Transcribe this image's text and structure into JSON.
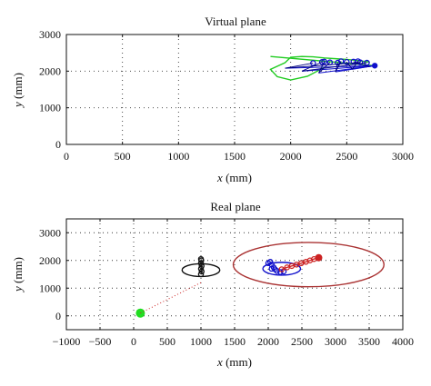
{
  "chart_data": [
    {
      "type": "scatter",
      "title": "Virtual plane",
      "xlabel_var": "x",
      "xlabel_unit": " (mm)",
      "ylabel_var": "y",
      "ylabel_unit": " (mm)",
      "xlim": [
        0,
        3000
      ],
      "ylim": [
        0,
        3000
      ],
      "xticks": [
        0,
        500,
        1000,
        1500,
        2000,
        2500,
        3000
      ],
      "yticks": [
        0,
        1000,
        2000,
        3000
      ],
      "grid": true,
      "colors": {
        "green": "#22cc22",
        "blue": "#1010cc",
        "navy": "#000080"
      },
      "series": [
        {
          "color": "green",
          "kind": "trajectory",
          "x": [
            2700,
            2600,
            2500,
            2400,
            2300,
            2200,
            2100,
            2000,
            1950,
            1820,
            1880,
            2000,
            2150,
            2300
          ],
          "y": [
            2250,
            2290,
            2320,
            2340,
            2360,
            2390,
            2400,
            2380,
            2230,
            2050,
            1850,
            1760,
            1860,
            2100
          ]
        },
        {
          "color": "green",
          "kind": "line",
          "x": [
            1820,
            2750
          ],
          "y": [
            2400,
            2150
          ]
        },
        {
          "color": "blue",
          "kind": "fan_center",
          "x": [
            2750
          ],
          "y": [
            2150
          ]
        },
        {
          "color": "blue",
          "kind": "fan_points",
          "x": [
            2200,
            2280,
            2350,
            2420,
            2500,
            2560,
            2620,
            2680,
            2300,
            2450,
            2600
          ],
          "y": [
            2220,
            2250,
            2240,
            2230,
            2250,
            2260,
            2240,
            2230,
            2260,
            2270,
            2270
          ]
        },
        {
          "color": "blue",
          "kind": "fan_targets",
          "x": [
            1950,
            2100,
            2250,
            2400,
            2550,
            2700
          ],
          "y": [
            2080,
            2000,
            1950,
            1980,
            2050,
            2120
          ]
        }
      ]
    },
    {
      "type": "scatter",
      "title": "Real plane",
      "xlabel_var": "x",
      "xlabel_unit": " (mm)",
      "ylabel_var": "y",
      "ylabel_unit": " (mm)",
      "xlim": [
        -1000,
        4000
      ],
      "ylim": [
        -500,
        3500
      ],
      "xticks": [
        -1000,
        -500,
        0,
        500,
        1000,
        1500,
        2000,
        2500,
        3000,
        3500,
        4000
      ],
      "xtick_labels": [
        "−1000",
        "−500",
        "0",
        "500",
        "1000",
        "1500",
        "2000",
        "2500",
        "3000",
        "3500",
        "4000"
      ],
      "yticks": [
        0,
        1000,
        2000,
        3000
      ],
      "grid": true,
      "colors": {
        "green": "#22dd22",
        "black": "#111111",
        "blue": "#1010cc",
        "red": "#cc2222",
        "darkred": "#aa3333"
      },
      "series": [
        {
          "color": "green",
          "kind": "start",
          "x": [
            100
          ],
          "y": [
            100
          ]
        },
        {
          "color": "red",
          "kind": "dotted_line",
          "x": [
            100,
            1000
          ],
          "y": [
            100,
            1200
          ]
        },
        {
          "color": "black",
          "kind": "ellipse",
          "cx": 1000,
          "cy": 1650,
          "rx": 280,
          "ry": 230
        },
        {
          "color": "black",
          "kind": "markers",
          "x": [
            1000,
            1010,
            1000,
            1010,
            1000,
            1005,
            1000
          ],
          "y": [
            1500,
            1600,
            1700,
            1800,
            1900,
            2000,
            2050
          ]
        },
        {
          "color": "blue",
          "kind": "ellipse",
          "cx": 2200,
          "cy": 1700,
          "rx": 280,
          "ry": 230
        },
        {
          "color": "blue",
          "kind": "markers",
          "x": [
            2030,
            2050,
            2080,
            2100,
            2130,
            2180,
            2230,
            2050,
            2000
          ],
          "y": [
            1950,
            1850,
            1750,
            1680,
            1620,
            1580,
            1600,
            1700,
            1900
          ]
        },
        {
          "color": "red",
          "kind": "markers",
          "x": [
            2200,
            2280,
            2350,
            2420,
            2490,
            2560,
            2620,
            2680,
            2750
          ],
          "y": [
            1680,
            1750,
            1800,
            1850,
            1900,
            1950,
            2000,
            2050,
            2100
          ]
        },
        {
          "color": "darkred",
          "kind": "ellipse",
          "cx": 2600,
          "cy": 1850,
          "rx": 1120,
          "ry": 800
        }
      ]
    }
  ]
}
